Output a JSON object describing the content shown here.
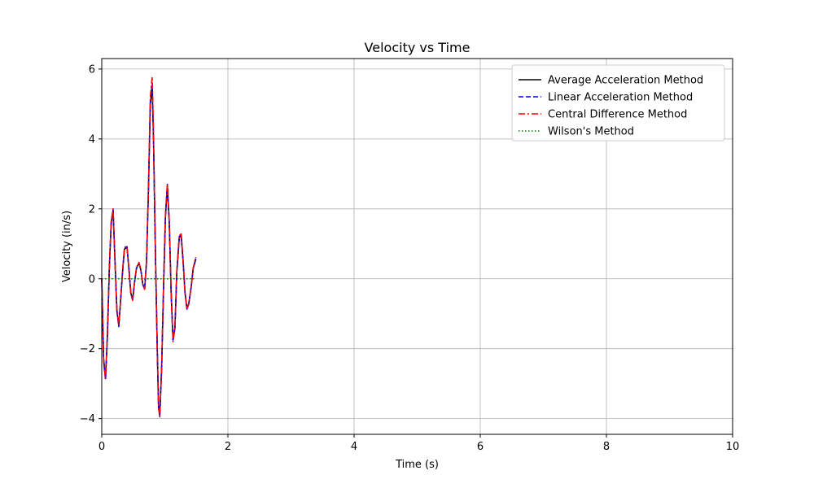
{
  "chart_data": {
    "type": "line",
    "title": "Velocity vs Time",
    "xlabel": "Time (s)",
    "ylabel": "Velocity (in/s)",
    "xlim": [
      0,
      10
    ],
    "ylim": [
      -4.45,
      6.3
    ],
    "xticks": [
      0,
      2,
      4,
      6,
      8,
      10
    ],
    "yticks": [
      -4,
      -2,
      0,
      2,
      4,
      6
    ],
    "xtick_labels": [
      "0",
      "2",
      "4",
      "6",
      "8",
      "10"
    ],
    "ytick_labels": [
      "−4",
      "−2",
      "0",
      "2",
      "4",
      "6"
    ],
    "grid": true,
    "legend_position": "top-right",
    "series": [
      {
        "name": "Average Acceleration Method",
        "color": "#000000",
        "style": "solid",
        "x": [
          0,
          0.03,
          0.06,
          0.09,
          0.12,
          0.15,
          0.18,
          0.21,
          0.24,
          0.27,
          0.3,
          0.33,
          0.36,
          0.4,
          0.43,
          0.46,
          0.49,
          0.52,
          0.55,
          0.59,
          0.62,
          0.65,
          0.68,
          0.71,
          0.74,
          0.77,
          0.8,
          0.82,
          0.85,
          0.88,
          0.9,
          0.92,
          0.95,
          0.98,
          1.01,
          1.04,
          1.07,
          1.1,
          1.13,
          1.16,
          1.19,
          1.23,
          1.26,
          1.29,
          1.32,
          1.35,
          1.38,
          1.42,
          1.45,
          1.49
        ],
        "y": [
          0,
          -2.3,
          -2.85,
          -1.6,
          0.3,
          1.6,
          1.95,
          0.5,
          -0.9,
          -1.35,
          -0.6,
          0.2,
          0.85,
          0.9,
          0.3,
          -0.4,
          -0.6,
          -0.1,
          0.3,
          0.45,
          0.25,
          -0.15,
          -0.3,
          0.5,
          2.5,
          5.0,
          5.45,
          4.0,
          0.8,
          -2.0,
          -3.6,
          -3.9,
          -2.5,
          -0.2,
          1.8,
          2.65,
          1.6,
          -0.4,
          -1.75,
          -1.4,
          0.2,
          1.2,
          1.2,
          0.5,
          -0.4,
          -0.85,
          -0.7,
          -0.2,
          0.3,
          0.55
        ]
      },
      {
        "name": "Linear Acceleration Method",
        "color": "#0000ff",
        "style": "dashed",
        "x": [
          0,
          0.03,
          0.06,
          0.09,
          0.12,
          0.15,
          0.18,
          0.21,
          0.24,
          0.27,
          0.3,
          0.33,
          0.36,
          0.4,
          0.43,
          0.46,
          0.49,
          0.52,
          0.55,
          0.59,
          0.62,
          0.65,
          0.68,
          0.71,
          0.74,
          0.77,
          0.8,
          0.82,
          0.85,
          0.88,
          0.9,
          0.92,
          0.95,
          0.98,
          1.01,
          1.04,
          1.07,
          1.1,
          1.13,
          1.16,
          1.19,
          1.23,
          1.26,
          1.29,
          1.32,
          1.35,
          1.38,
          1.42,
          1.45,
          1.49
        ],
        "y": [
          0,
          -2.35,
          -2.9,
          -1.65,
          0.3,
          1.62,
          1.98,
          0.5,
          -0.92,
          -1.37,
          -0.6,
          0.2,
          0.87,
          0.92,
          0.3,
          -0.4,
          -0.62,
          -0.1,
          0.3,
          0.46,
          0.25,
          -0.15,
          -0.3,
          0.5,
          2.55,
          5.1,
          5.6,
          4.1,
          0.8,
          -2.05,
          -3.7,
          -3.95,
          -2.55,
          -0.2,
          1.82,
          2.7,
          1.62,
          -0.4,
          -1.78,
          -1.42,
          0.2,
          1.22,
          1.25,
          0.5,
          -0.4,
          -0.87,
          -0.72,
          -0.2,
          0.3,
          0.58
        ]
      },
      {
        "name": "Central Difference Method",
        "color": "#ff0000",
        "style": "dashdot",
        "x": [
          0,
          0.03,
          0.06,
          0.09,
          0.12,
          0.15,
          0.18,
          0.21,
          0.24,
          0.27,
          0.3,
          0.33,
          0.36,
          0.4,
          0.43,
          0.46,
          0.49,
          0.52,
          0.55,
          0.59,
          0.62,
          0.65,
          0.68,
          0.71,
          0.74,
          0.77,
          0.8,
          0.82,
          0.85,
          0.88,
          0.9,
          0.92,
          0.95,
          0.98,
          1.01,
          1.04,
          1.07,
          1.1,
          1.13,
          1.16,
          1.19,
          1.23,
          1.26,
          1.29,
          1.32,
          1.35,
          1.38,
          1.42,
          1.45,
          1.49
        ],
        "y": [
          0,
          -2.4,
          -2.85,
          -1.55,
          0.35,
          1.65,
          2.0,
          0.5,
          -0.9,
          -1.33,
          -0.58,
          0.22,
          0.9,
          0.93,
          0.3,
          -0.42,
          -0.62,
          -0.1,
          0.32,
          0.47,
          0.25,
          -0.17,
          -0.3,
          0.55,
          2.6,
          5.2,
          5.78,
          4.2,
          0.85,
          -2.1,
          -3.7,
          -3.95,
          -2.5,
          -0.15,
          1.9,
          2.72,
          1.65,
          -0.45,
          -1.8,
          -1.4,
          0.25,
          1.25,
          1.28,
          0.5,
          -0.42,
          -0.88,
          -0.72,
          -0.2,
          0.32,
          0.62
        ]
      },
      {
        "name": "Wilson's Method",
        "color": "#008000",
        "style": "dotted",
        "x": [
          0,
          0.3,
          0.6,
          0.9,
          1.2,
          1.49
        ],
        "y": [
          0,
          0,
          0,
          0,
          0,
          0
        ]
      }
    ]
  }
}
